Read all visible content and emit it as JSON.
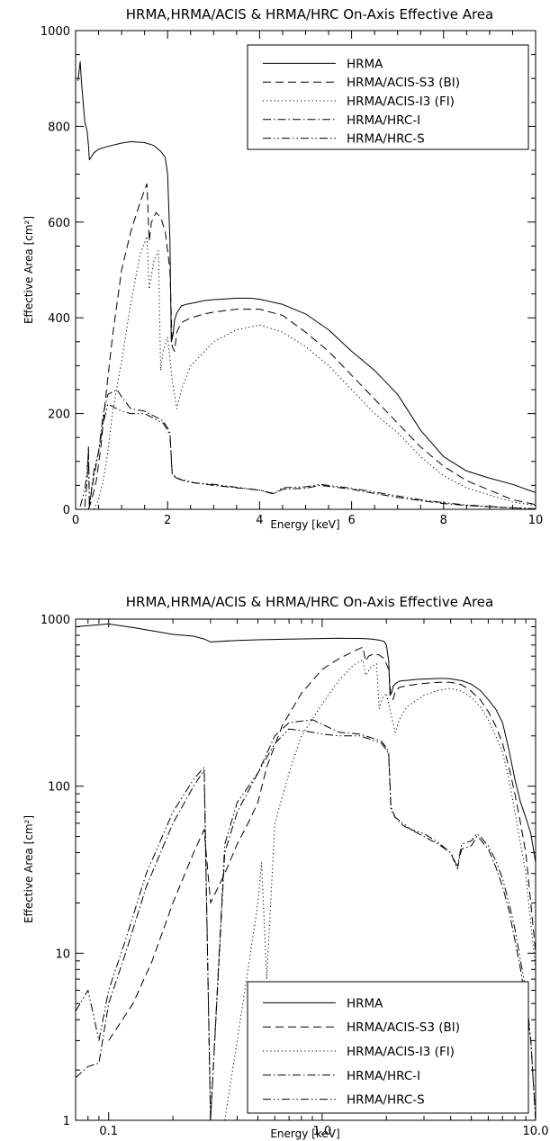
{
  "chart_data": [
    {
      "type": "line",
      "title": "HRMA,HRMA/ACIS & HRMA/HRC On-Axis Effective Area",
      "xlabel": "Energy [keV]",
      "ylabel": "Effective Area [cm²]",
      "xscale": "linear",
      "yscale": "linear",
      "xlim": [
        0,
        10
      ],
      "ylim": [
        0,
        1000
      ],
      "x_ticks": [
        "0",
        "2",
        "4",
        "6",
        "8",
        "10"
      ],
      "y_ticks": [
        "0",
        "200",
        "400",
        "600",
        "800",
        "1000"
      ],
      "legend": "top-right",
      "series": [
        {
          "name": "HRMA",
          "style": "solid",
          "x": [
            0.05,
            0.1,
            0.13,
            0.2,
            0.25,
            0.28,
            0.3,
            0.4,
            0.5,
            0.7,
            1.0,
            1.2,
            1.5,
            1.7,
            1.85,
            1.95,
            2.0,
            2.05,
            2.08,
            2.12,
            2.15,
            2.2,
            2.3,
            2.4,
            2.5,
            2.6,
            2.8,
            3.0,
            3.5,
            3.8,
            4.0,
            4.5,
            5.0,
            5.5,
            6.0,
            6.5,
            7.0,
            7.5,
            8.0,
            8.5,
            9.0,
            9.5,
            10.0
          ],
          "y": [
            895,
            935,
            890,
            810,
            790,
            760,
            730,
            745,
            752,
            758,
            765,
            768,
            766,
            760,
            748,
            735,
            700,
            560,
            350,
            365,
            395,
            410,
            425,
            428,
            430,
            432,
            436,
            438,
            441,
            441,
            439,
            428,
            408,
            375,
            330,
            290,
            240,
            165,
            110,
            80,
            65,
            52,
            35
          ]
        },
        {
          "name": "HRMA/ACIS-S3 (BI)",
          "style": "dashed",
          "x": [
            0.28,
            0.35,
            0.45,
            0.55,
            0.65,
            0.8,
            1.0,
            1.2,
            1.4,
            1.55,
            1.6,
            1.65,
            1.75,
            1.85,
            1.95,
            2.05,
            2.1,
            2.15,
            2.2,
            2.3,
            2.5,
            2.8,
            3.0,
            3.5,
            4.0,
            4.5,
            5.0,
            5.5,
            6.0,
            6.5,
            7.0,
            7.5,
            8.0,
            8.5,
            9.0,
            9.5,
            10.0
          ],
          "y": [
            0,
            20,
            60,
            130,
            230,
            360,
            500,
            580,
            640,
            680,
            560,
            600,
            620,
            610,
            580,
            500,
            340,
            330,
            370,
            390,
            400,
            408,
            412,
            418,
            418,
            405,
            370,
            330,
            280,
            230,
            180,
            130,
            90,
            60,
            40,
            20,
            10
          ]
        },
        {
          "name": "HRMA/ACIS-I3 (FI)",
          "style": "dotted",
          "x": [
            0.4,
            0.5,
            0.6,
            0.7,
            0.8,
            1.0,
            1.2,
            1.4,
            1.55,
            1.6,
            1.7,
            1.8,
            1.85,
            1.9,
            2.0,
            2.1,
            2.2,
            2.3,
            2.5,
            2.8,
            3.0,
            3.5,
            4.0,
            4.5,
            5.0,
            5.5,
            6.0,
            6.5,
            7.0,
            7.5,
            8.0,
            8.5,
            9.0,
            9.5,
            10.0
          ],
          "y": [
            0,
            20,
            60,
            120,
            200,
            310,
            430,
            530,
            570,
            460,
            520,
            540,
            290,
            330,
            360,
            270,
            210,
            250,
            300,
            330,
            350,
            375,
            385,
            370,
            340,
            300,
            250,
            200,
            160,
            110,
            70,
            45,
            30,
            15,
            8
          ]
        },
        {
          "name": "HRMA/HRC-I",
          "style": "dash-dot",
          "x": [
            0.2,
            0.25,
            0.28,
            0.3,
            0.35,
            0.4,
            0.5,
            0.6,
            0.7,
            0.8,
            0.9,
            1.0,
            1.2,
            1.5,
            1.7,
            1.8,
            1.9,
            2.0,
            2.05,
            2.1,
            2.2,
            2.4,
            2.6,
            3.0,
            3.5,
            4.0,
            4.3,
            4.5,
            5.0,
            5.3,
            5.5,
            6.0,
            6.5,
            7.0,
            7.5,
            8.0,
            8.5,
            9.0,
            9.5,
            10.0
          ],
          "y": [
            5,
            60,
            125,
            8,
            40,
            70,
            120,
            200,
            240,
            245,
            250,
            235,
            210,
            205,
            195,
            190,
            185,
            170,
            160,
            75,
            65,
            58,
            55,
            50,
            45,
            40,
            32,
            42,
            44,
            50,
            48,
            42,
            33,
            25,
            18,
            12,
            8,
            5,
            3,
            1
          ]
        },
        {
          "name": "HRMA/HRC-S",
          "style": "dash-dot-dot",
          "x": [
            0.1,
            0.2,
            0.25,
            0.28,
            0.3,
            0.35,
            0.4,
            0.5,
            0.6,
            0.7,
            0.8,
            0.9,
            1.0,
            1.2,
            1.5,
            1.7,
            1.8,
            1.9,
            2.0,
            2.05,
            2.1,
            2.2,
            2.4,
            2.6,
            3.0,
            3.5,
            4.0,
            4.3,
            4.5,
            5.0,
            5.3,
            5.5,
            6.0,
            6.5,
            7.0,
            7.5,
            8.0,
            8.5,
            9.0,
            9.5,
            10.0
          ],
          "y": [
            6,
            40,
            80,
            130,
            5,
            45,
            80,
            120,
            180,
            220,
            215,
            210,
            205,
            200,
            200,
            190,
            185,
            180,
            165,
            155,
            72,
            65,
            60,
            55,
            52,
            46,
            40,
            33,
            45,
            47,
            52,
            50,
            44,
            36,
            28,
            20,
            14,
            9,
            6,
            3,
            1
          ]
        }
      ]
    },
    {
      "type": "line",
      "title": "HRMA,HRMA/ACIS & HRMA/HRC On-Axis Effective Area",
      "xlabel": "Energy [keV]",
      "ylabel": "Effective Area [cm²]",
      "xscale": "log",
      "yscale": "log",
      "xlim": [
        0.07,
        10
      ],
      "ylim": [
        1,
        1000
      ],
      "x_ticks": [
        {
          "value": 0.1,
          "label": "0.1"
        },
        {
          "value": 1,
          "label": "1.0"
        },
        {
          "value": 10,
          "label": "10.0"
        }
      ],
      "y_ticks": [
        {
          "value": 1,
          "label": "1"
        },
        {
          "value": 10,
          "label": "10"
        },
        {
          "value": 100,
          "label": "100"
        },
        {
          "value": 1000,
          "label": "1000"
        }
      ],
      "legend": "bottom-right",
      "series": [
        {
          "name": "HRMA",
          "style": "solid",
          "x": [
            0.07,
            0.1,
            0.13,
            0.2,
            0.25,
            0.28,
            0.3,
            0.4,
            0.5,
            0.7,
            1.0,
            1.2,
            1.5,
            1.7,
            1.85,
            1.95,
            2.0,
            2.05,
            2.08,
            2.12,
            2.15,
            2.2,
            2.3,
            2.4,
            2.5,
            2.6,
            2.8,
            3.0,
            3.5,
            3.8,
            4.0,
            4.5,
            5.0,
            5.5,
            6.0,
            6.5,
            7.0,
            7.5,
            8.0,
            8.5,
            9.0,
            9.5,
            10.0
          ],
          "y": [
            900,
            935,
            890,
            810,
            790,
            760,
            730,
            745,
            752,
            758,
            765,
            768,
            766,
            760,
            748,
            735,
            700,
            560,
            350,
            365,
            395,
            410,
            425,
            428,
            430,
            432,
            436,
            438,
            441,
            441,
            439,
            428,
            408,
            375,
            330,
            290,
            240,
            165,
            110,
            80,
            65,
            52,
            35
          ]
        },
        {
          "name": "HRMA/ACIS-S3 (BI)",
          "style": "dashed",
          "x": [
            0.1,
            0.13,
            0.16,
            0.2,
            0.25,
            0.28,
            0.3,
            0.35,
            0.4,
            0.45,
            0.5,
            0.55,
            0.65,
            0.8,
            1.0,
            1.2,
            1.4,
            1.55,
            1.6,
            1.65,
            1.75,
            1.85,
            1.95,
            2.05,
            2.1,
            2.15,
            2.2,
            2.3,
            2.5,
            2.8,
            3.0,
            3.5,
            4.0,
            4.5,
            5.0,
            5.5,
            6.0,
            6.5,
            7.0,
            7.5,
            8.0,
            8.5,
            9.0,
            9.5,
            10.0
          ],
          "y": [
            3,
            5,
            9,
            20,
            40,
            55,
            20,
            30,
            45,
            60,
            80,
            130,
            230,
            360,
            500,
            580,
            640,
            680,
            560,
            600,
            620,
            610,
            580,
            500,
            340,
            330,
            370,
            390,
            400,
            408,
            412,
            418,
            418,
            405,
            370,
            330,
            280,
            230,
            180,
            130,
            90,
            60,
            40,
            20,
            10
          ]
        },
        {
          "name": "HRMA/ACIS-I3 (FI)",
          "style": "dotted",
          "x": [
            0.35,
            0.4,
            0.45,
            0.5,
            0.52,
            0.55,
            0.6,
            0.7,
            0.8,
            1.0,
            1.2,
            1.4,
            1.55,
            1.6,
            1.7,
            1.8,
            1.85,
            1.9,
            2.0,
            2.1,
            2.2,
            2.3,
            2.5,
            2.8,
            3.0,
            3.5,
            4.0,
            4.5,
            5.0,
            5.5,
            6.0,
            6.5,
            7.0,
            7.5,
            8.0,
            8.5,
            9.0,
            9.5,
            10.0
          ],
          "y": [
            1,
            3,
            8,
            20,
            35,
            7,
            60,
            120,
            200,
            310,
            430,
            530,
            570,
            460,
            520,
            540,
            290,
            330,
            360,
            270,
            210,
            250,
            300,
            330,
            350,
            375,
            385,
            370,
            340,
            300,
            250,
            200,
            160,
            110,
            70,
            45,
            30,
            15,
            8
          ]
        },
        {
          "name": "HRMA/HRC-I",
          "style": "dash-dot",
          "x": [
            0.07,
            0.08,
            0.09,
            0.1,
            0.12,
            0.15,
            0.2,
            0.25,
            0.28,
            0.3,
            0.35,
            0.4,
            0.5,
            0.6,
            0.7,
            0.8,
            0.9,
            1.0,
            1.2,
            1.5,
            1.7,
            1.8,
            1.9,
            2.0,
            2.05,
            2.1,
            2.2,
            2.4,
            2.6,
            3.0,
            3.5,
            4.0,
            4.3,
            4.5,
            5.0,
            5.3,
            5.5,
            6.0,
            6.5,
            7.0,
            7.5,
            8.0,
            8.5,
            9.0,
            9.5,
            10.0
          ],
          "y": [
            1.8,
            2.1,
            2.2,
            5,
            10,
            25,
            60,
            100,
            125,
            1,
            40,
            70,
            120,
            200,
            240,
            245,
            250,
            235,
            210,
            205,
            195,
            190,
            185,
            170,
            160,
            75,
            65,
            58,
            55,
            50,
            45,
            40,
            32,
            42,
            44,
            50,
            48,
            42,
            33,
            25,
            18,
            12,
            8,
            5,
            3,
            1
          ]
        },
        {
          "name": "HRMA/HRC-S",
          "style": "dash-dot-dot",
          "x": [
            0.07,
            0.08,
            0.09,
            0.1,
            0.12,
            0.15,
            0.2,
            0.25,
            0.28,
            0.3,
            0.35,
            0.4,
            0.5,
            0.6,
            0.7,
            0.8,
            0.9,
            1.0,
            1.2,
            1.5,
            1.7,
            1.8,
            1.9,
            2.0,
            2.05,
            2.1,
            2.2,
            2.4,
            2.6,
            3.0,
            3.5,
            4.0,
            4.3,
            4.5,
            5.0,
            5.3,
            5.5,
            6.0,
            6.5,
            7.0,
            7.5,
            8.0,
            8.5,
            9.0,
            9.5,
            10.0
          ],
          "y": [
            4.5,
            6,
            3,
            6,
            12,
            30,
            70,
            110,
            130,
            1,
            45,
            80,
            120,
            180,
            220,
            215,
            210,
            205,
            200,
            200,
            190,
            185,
            180,
            165,
            155,
            72,
            65,
            60,
            55,
            52,
            46,
            40,
            33,
            45,
            47,
            52,
            50,
            44,
            36,
            28,
            20,
            14,
            9,
            6,
            3,
            1
          ]
        }
      ]
    }
  ]
}
